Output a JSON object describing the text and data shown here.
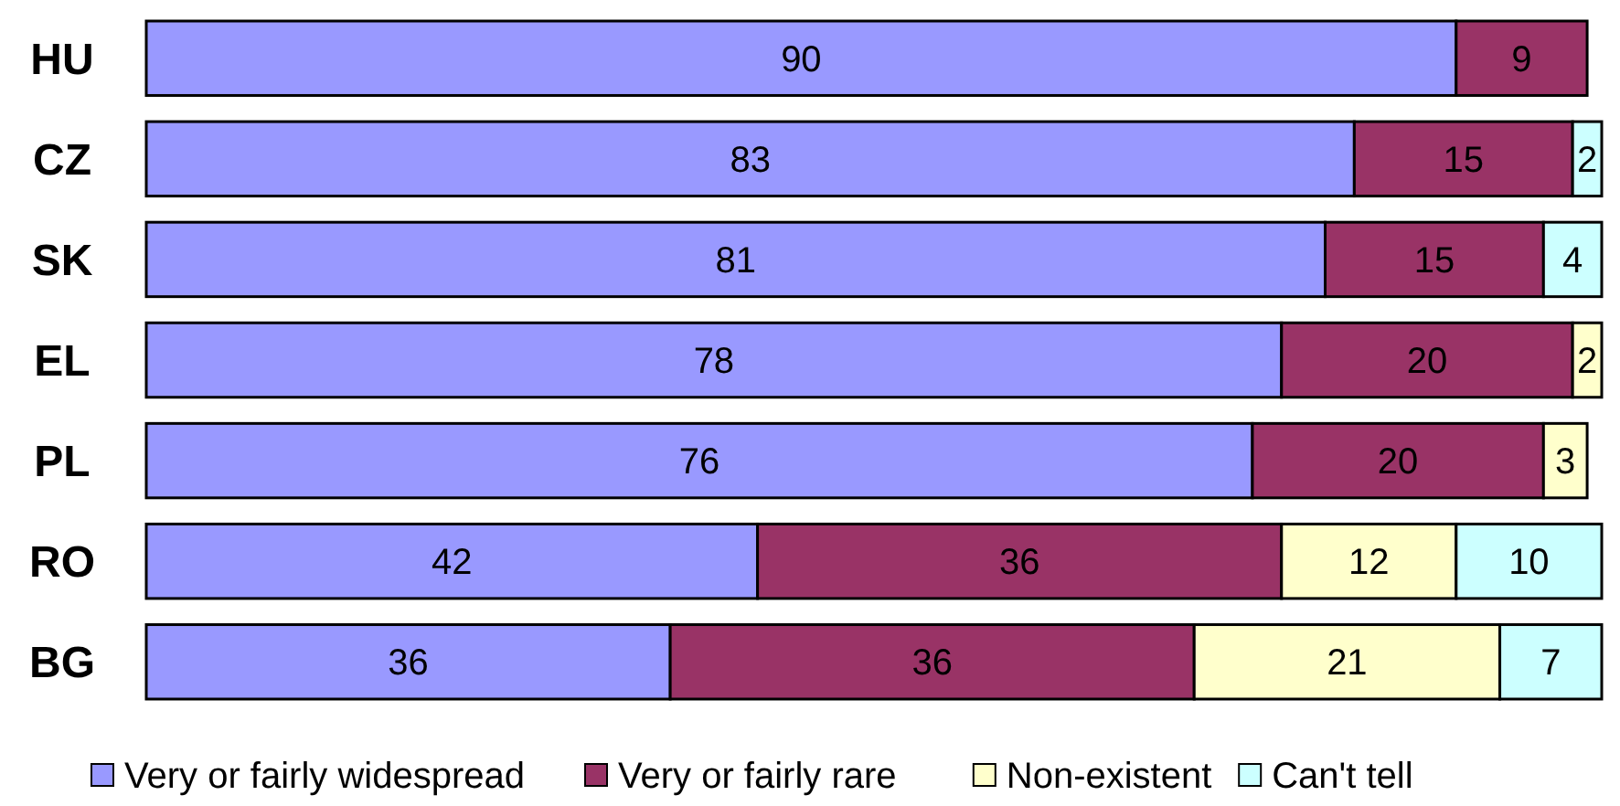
{
  "chart_data": {
    "type": "bar",
    "orientation": "horizontal",
    "stacked": true,
    "data_labels": true,
    "legend": "bottom",
    "grid": false,
    "categories": [
      "HU",
      "CZ",
      "SK",
      "EL",
      "PL",
      "RO",
      "BG"
    ],
    "series": [
      {
        "name": "Very or fairly widespread",
        "color": "#9999ff",
        "values": [
          90,
          83,
          81,
          78,
          76,
          42,
          36
        ]
      },
      {
        "name": "Very or fairly rare",
        "color": "#993366",
        "values": [
          9,
          15,
          15,
          20,
          20,
          36,
          36
        ]
      },
      {
        "name": "Non-existent",
        "color": "#ffffcc",
        "values": [
          null,
          null,
          null,
          2,
          3,
          12,
          21
        ]
      },
      {
        "name": "Can't tell",
        "color": "#ccffff",
        "values": [
          null,
          2,
          4,
          null,
          null,
          10,
          7
        ]
      }
    ]
  }
}
